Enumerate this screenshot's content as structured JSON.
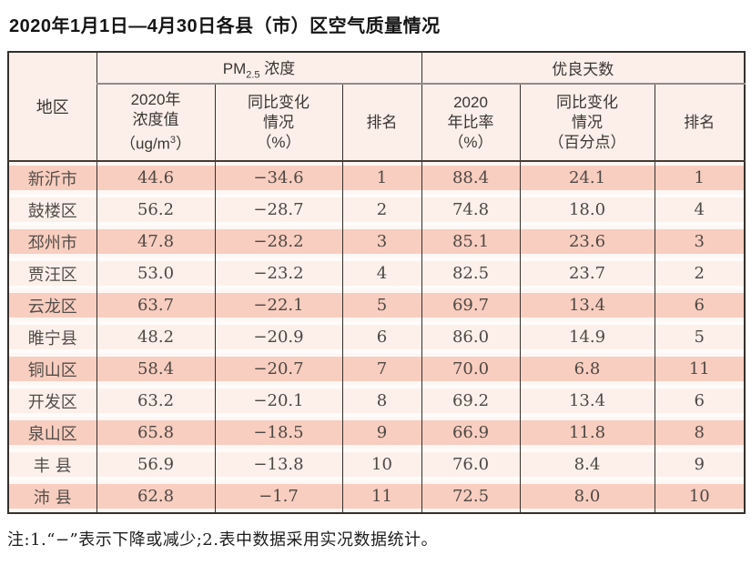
{
  "page": {
    "title": "2020年1月1日—4月30日各县（市）区空气质量情况",
    "footnote": "注:1.“−”表示下降或减少;2.表中数据采用实况数据统计。"
  },
  "table": {
    "region_header": "地区",
    "group_pm": {
      "prefix": "PM",
      "subscript": "2.5",
      "suffix": " 浓度"
    },
    "group_days": "优良天数",
    "sub_headers": {
      "pm_value_l1": "2020年",
      "pm_value_l2": "浓度值",
      "pm_value_l3_pre": "（ug/m",
      "pm_value_l3_sup": "3",
      "pm_value_l3_post": "）",
      "pm_change_l1": "同比变化",
      "pm_change_l2": "情况",
      "pm_change_l3": "（%）",
      "pm_rank": "排名",
      "days_rate_l1": "2020",
      "days_rate_l2": "年比率",
      "days_rate_l3": "（%）",
      "days_change_l1": "同比变化",
      "days_change_l2": "情况",
      "days_change_l3": "（百分点）",
      "days_rank": "排名"
    },
    "rows": [
      {
        "region": "新沂市",
        "pm_value": "44.6",
        "pm_change": "−34.6",
        "pm_rank": "1",
        "days_rate": "88.4",
        "days_change": "24.1",
        "days_rank": "1"
      },
      {
        "region": "鼓楼区",
        "pm_value": "56.2",
        "pm_change": "−28.7",
        "pm_rank": "2",
        "days_rate": "74.8",
        "days_change": "18.0",
        "days_rank": "4"
      },
      {
        "region": "邳州市",
        "pm_value": "47.8",
        "pm_change": "−28.2",
        "pm_rank": "3",
        "days_rate": "85.1",
        "days_change": "23.6",
        "days_rank": "3"
      },
      {
        "region": "贾汪区",
        "pm_value": "53.0",
        "pm_change": "−23.2",
        "pm_rank": "4",
        "days_rate": "82.5",
        "days_change": "23.7",
        "days_rank": "2"
      },
      {
        "region": "云龙区",
        "pm_value": "63.7",
        "pm_change": "−22.1",
        "pm_rank": "5",
        "days_rate": "69.7",
        "days_change": "13.4",
        "days_rank": "6"
      },
      {
        "region": "睢宁县",
        "pm_value": "48.2",
        "pm_change": "−20.9",
        "pm_rank": "6",
        "days_rate": "86.0",
        "days_change": "14.9",
        "days_rank": "5"
      },
      {
        "region": "铜山区",
        "pm_value": "58.4",
        "pm_change": "−20.7",
        "pm_rank": "7",
        "days_rate": "70.0",
        "days_change": "6.8",
        "days_rank": "11"
      },
      {
        "region": "开发区",
        "pm_value": "63.2",
        "pm_change": "−20.1",
        "pm_rank": "8",
        "days_rate": "69.2",
        "days_change": "13.4",
        "days_rank": "6"
      },
      {
        "region": "泉山区",
        "pm_value": "65.8",
        "pm_change": "−18.5",
        "pm_rank": "9",
        "days_rate": "66.9",
        "days_change": "11.8",
        "days_rank": "8"
      },
      {
        "region": "丰 县",
        "pm_value": "56.9",
        "pm_change": "−13.8",
        "pm_rank": "10",
        "days_rate": "76.0",
        "days_change": "8.4",
        "days_rank": "9"
      },
      {
        "region": "沛 县",
        "pm_value": "62.8",
        "pm_change": "−1.7",
        "pm_rank": "11",
        "days_rate": "72.5",
        "days_change": "8.0",
        "days_rank": "10"
      }
    ]
  },
  "colors": {
    "stripe_odd": "#f8cec0",
    "stripe_even": "#fdf0ea",
    "header_bg": "#fcefe9",
    "border_dark": "#34302c",
    "border_gray": "#8f8b88"
  }
}
